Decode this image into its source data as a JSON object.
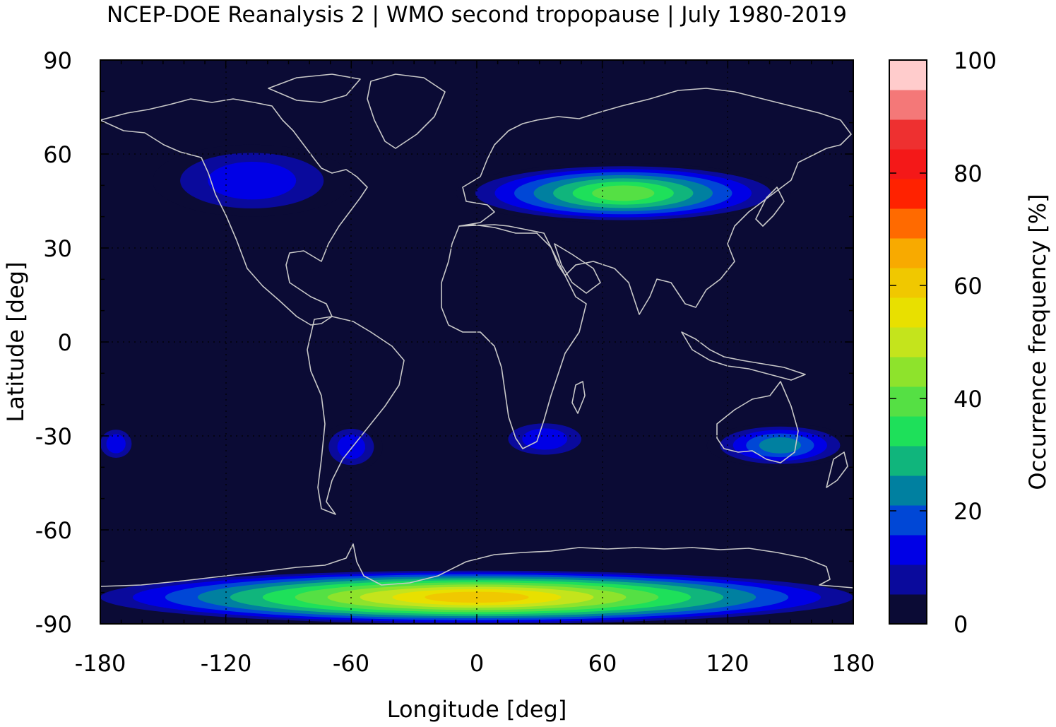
{
  "title": "NCEP-DOE Reanalysis 2 | WMO second tropopause | July 1980-2019",
  "map": {
    "xlabel": "Longitude [deg]",
    "ylabel": "Latitude [deg]",
    "xlim": [
      -180,
      180
    ],
    "ylim": [
      -90,
      90
    ],
    "x_ticks": [
      "-180",
      "-120",
      "-60",
      "0",
      "60",
      "120",
      "180"
    ],
    "y_ticks": [
      "90",
      "60",
      "30",
      "0",
      "-30",
      "-60",
      "-90"
    ],
    "background_color": "#0b0b35",
    "coastline_color": "#c8c8c8"
  },
  "colorbar": {
    "label": "Occurrence frequency [%]",
    "range": [
      0,
      100
    ],
    "ticks": [
      "100",
      "80",
      "60",
      "40",
      "20",
      "0"
    ],
    "colors": [
      "#0b0b35",
      "#0a0a9c",
      "#0000e6",
      "#0047d6",
      "#0080a0",
      "#10b57c",
      "#1ee05a",
      "#55e044",
      "#8ee32c",
      "#c4e41c",
      "#e8e000",
      "#f0c800",
      "#f8aa00",
      "#ff6a00",
      "#ff2200",
      "#f41818",
      "#ee3030",
      "#f47878",
      "#ffcccc"
    ]
  },
  "chart_data": {
    "type": "heatmap",
    "title": "NCEP-DOE Reanalysis 2 | WMO second tropopause | July 1980-2019",
    "xlabel": "Longitude [deg]",
    "ylabel": "Latitude [deg]",
    "xlim": [
      -180,
      180
    ],
    "ylim": [
      -90,
      90
    ],
    "colorbar_label": "Occurrence frequency [%]",
    "colorbar_range": [
      0,
      100
    ],
    "regions": [
      {
        "name": "North America",
        "lon": [
          -155,
          -60
        ],
        "lat": [
          40,
          63
        ],
        "peak": 15
      },
      {
        "name": "Eurasia",
        "lon": [
          -10,
          150
        ],
        "lat": [
          38,
          57
        ],
        "peak": 40
      },
      {
        "name": "South Pacific west",
        "lon": [
          -180,
          -165
        ],
        "lat": [
          -37,
          -28
        ],
        "peak": 12
      },
      {
        "name": "South America",
        "lon": [
          -75,
          -45
        ],
        "lat": [
          -41,
          -26
        ],
        "peak": 15
      },
      {
        "name": "Southern Africa",
        "lon": [
          15,
          50
        ],
        "lat": [
          -36,
          -26
        ],
        "peak": 12
      },
      {
        "name": "Australia",
        "lon": [
          110,
          180
        ],
        "lat": [
          -40,
          -26
        ],
        "peak": 25
      },
      {
        "name": "Antarctica",
        "lon": [
          -180,
          180
        ],
        "lat": [
          -90,
          -73
        ],
        "peak": 58
      }
    ]
  }
}
